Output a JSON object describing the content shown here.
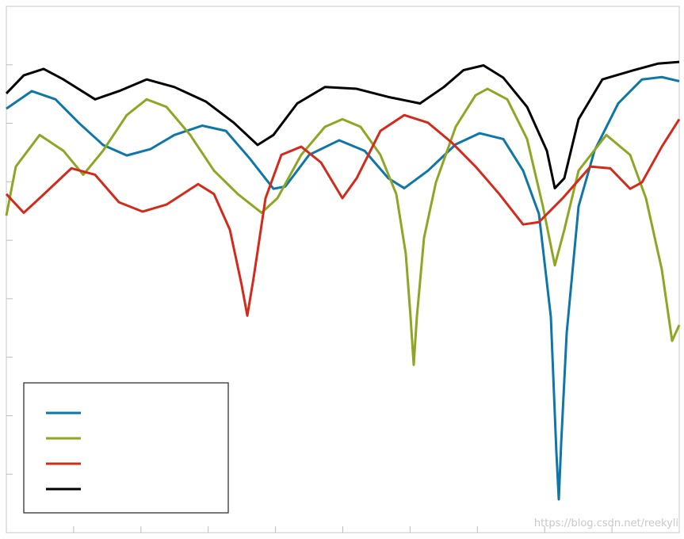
{
  "chart_data": {
    "type": "line",
    "xlim": [
      0,
      10
    ],
    "ylim": [
      0,
      9
    ],
    "xticks": [
      {
        "value": 1,
        "label": null
      },
      {
        "value": 2,
        "label": null
      },
      {
        "value": 3,
        "label": null
      },
      {
        "value": 4,
        "label": null
      },
      {
        "value": 5,
        "label": null
      },
      {
        "value": 6,
        "label": null
      },
      {
        "value": 7,
        "label": null
      },
      {
        "value": 8,
        "label": null
      },
      {
        "value": 9,
        "label": null
      }
    ],
    "yticks": [
      {
        "value": 1,
        "label": null
      },
      {
        "value": 2,
        "label": null
      },
      {
        "value": 3,
        "label": null
      },
      {
        "value": 4,
        "label": null
      },
      {
        "value": 5,
        "label": null
      },
      {
        "value": 6,
        "label": null
      },
      {
        "value": 7,
        "label": null
      },
      {
        "value": 8,
        "label": null
      }
    ],
    "grid": false,
    "legend": "lower left",
    "watermark": "https://blog.csdn.net/reekyli",
    "series": [
      {
        "color": "#0e76a8",
        "x": [
          0,
          0.377,
          0.73,
          1.084,
          1.437,
          1.79,
          2.144,
          2.497,
          2.91,
          3.263,
          3.616,
          3.97,
          4.146,
          4.5,
          4.947,
          5.324,
          5.677,
          5.913,
          6.266,
          6.678,
          7.032,
          7.385,
          7.68,
          7.915,
          8.092,
          8.174,
          8.21,
          8.245,
          8.327,
          8.504,
          8.74,
          9.093,
          9.446,
          9.741,
          10
        ],
        "values": [
          7.25,
          7.55,
          7.41,
          7.0,
          6.63,
          6.45,
          6.56,
          6.8,
          6.96,
          6.87,
          6.4,
          5.88,
          5.92,
          6.46,
          6.71,
          6.53,
          6.06,
          5.89,
          6.19,
          6.64,
          6.83,
          6.73,
          6.19,
          5.45,
          3.69,
          1.38,
          0.57,
          1.52,
          3.41,
          5.58,
          6.53,
          7.34,
          7.75,
          7.79,
          7.72
        ]
      },
      {
        "color": "#8ea624",
        "x": [
          0,
          0.141,
          0.495,
          0.848,
          1.143,
          1.437,
          1.79,
          2.085,
          2.38,
          2.733,
          3.086,
          3.44,
          3.793,
          4.029,
          4.382,
          4.735,
          4.994,
          5.265,
          5.559,
          5.795,
          5.936,
          6.007,
          6.054,
          6.101,
          6.207,
          6.384,
          6.678,
          6.973,
          7.15,
          7.444,
          7.739,
          7.974,
          8.151,
          8.292,
          8.504,
          8.916,
          9.27,
          9.505,
          9.741,
          9.894,
          10
        ],
        "values": [
          5.42,
          6.26,
          6.8,
          6.53,
          6.12,
          6.53,
          7.14,
          7.41,
          7.28,
          6.8,
          6.19,
          5.79,
          5.47,
          5.72,
          6.46,
          6.94,
          7.07,
          6.94,
          6.46,
          5.79,
          4.77,
          3.69,
          2.87,
          3.69,
          5.04,
          5.99,
          6.94,
          7.48,
          7.59,
          7.41,
          6.73,
          5.58,
          4.57,
          5.18,
          6.19,
          6.8,
          6.46,
          5.72,
          4.5,
          3.28,
          3.55
        ]
      },
      {
        "color": "#d42a1c",
        "x": [
          0,
          0.259,
          0.495,
          0.966,
          1.319,
          1.673,
          2.026,
          2.38,
          2.85,
          3.086,
          3.322,
          3.498,
          3.581,
          3.675,
          3.852,
          4.087,
          4.382,
          4.676,
          4.994,
          5.206,
          5.559,
          5.913,
          6.266,
          6.62,
          6.973,
          7.326,
          7.68,
          7.915,
          8.269,
          8.681,
          8.975,
          9.27,
          9.446,
          9.741,
          10
        ],
        "values": [
          5.79,
          5.47,
          5.72,
          6.23,
          6.12,
          5.65,
          5.49,
          5.61,
          5.96,
          5.79,
          5.18,
          4.23,
          3.71,
          4.36,
          5.72,
          6.46,
          6.6,
          6.33,
          5.72,
          6.06,
          6.87,
          7.14,
          7.01,
          6.67,
          6.26,
          5.79,
          5.27,
          5.31,
          5.72,
          6.26,
          6.23,
          5.88,
          5.99,
          6.6,
          7.07
        ]
      },
      {
        "color": "#000000",
        "x": [
          0,
          0.259,
          0.554,
          0.848,
          1.319,
          1.673,
          2.085,
          2.497,
          2.968,
          3.38,
          3.734,
          3.969,
          4.323,
          4.735,
          5.206,
          5.677,
          6.148,
          6.502,
          6.796,
          7.091,
          7.385,
          7.739,
          8.033,
          8.151,
          8.292,
          8.504,
          8.857,
          9.329,
          9.682,
          10
        ],
        "values": [
          7.51,
          7.82,
          7.93,
          7.75,
          7.41,
          7.55,
          7.75,
          7.62,
          7.37,
          7.01,
          6.63,
          6.8,
          7.34,
          7.62,
          7.59,
          7.45,
          7.34,
          7.62,
          7.91,
          7.99,
          7.78,
          7.28,
          6.53,
          5.89,
          6.06,
          7.07,
          7.75,
          7.91,
          8.02,
          8.05
        ]
      }
    ]
  }
}
